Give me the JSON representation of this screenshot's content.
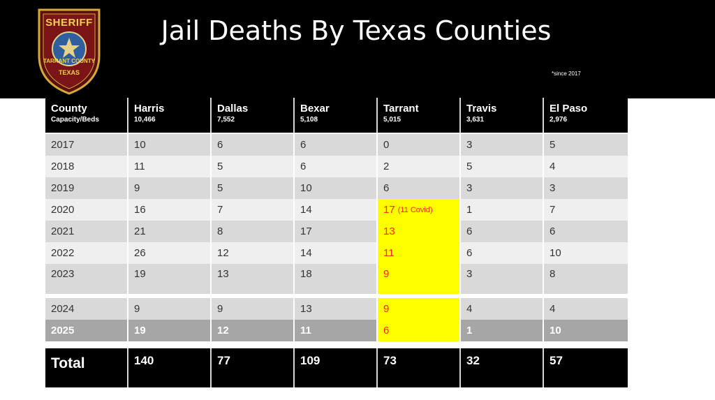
{
  "title": "Jail Deaths By Texas Counties",
  "note": "*since 2017",
  "badge": {
    "top": "SHERIFF",
    "middle": "TARRANT COUNTY",
    "bottom": "TEXAS"
  },
  "header": {
    "label": "County",
    "sub": "Capacity/Beds",
    "counties": [
      {
        "name": "Harris",
        "beds": "10,466"
      },
      {
        "name": "Dallas",
        "beds": "7,552"
      },
      {
        "name": "Bexar",
        "beds": "5,108"
      },
      {
        "name": "Tarrant",
        "beds": "5,015"
      },
      {
        "name": "Travis",
        "beds": "3,631"
      },
      {
        "name": "El Paso",
        "beds": "2,976"
      }
    ]
  },
  "rows": [
    {
      "year": "2017",
      "values": [
        "10",
        "6",
        "6",
        "0",
        "3",
        "5"
      ]
    },
    {
      "year": "2018",
      "values": [
        "11",
        "5",
        "6",
        "2",
        "5",
        "4"
      ]
    },
    {
      "year": "2019",
      "values": [
        "9",
        "5",
        "10",
        "6",
        "3",
        "3"
      ]
    },
    {
      "year": "2020",
      "values": [
        "16",
        "7",
        "14",
        "17",
        "1",
        "7"
      ],
      "tarrant_note": "(11 Covid)"
    },
    {
      "year": "2021",
      "values": [
        "21",
        "8",
        "17",
        "13",
        "6",
        "6"
      ]
    },
    {
      "year": "2022",
      "values": [
        "26",
        "12",
        "14",
        "11",
        "6",
        "10"
      ]
    },
    {
      "year": "2023",
      "values": [
        "19",
        "13",
        "18",
        "9",
        "3",
        "8"
      ]
    },
    {
      "year": "2024",
      "values": [
        "9",
        "9",
        "13",
        "9",
        "4",
        "4"
      ]
    },
    {
      "year": "2025",
      "values": [
        "19",
        "12",
        "11",
        "6",
        "1",
        "10"
      ]
    }
  ],
  "total": {
    "label": "Total",
    "values": [
      "140",
      "77",
      "109",
      "73",
      "32",
      "57"
    ]
  },
  "colors": {
    "highlight": "#ffff00",
    "highlight_text": "#ff2200"
  }
}
